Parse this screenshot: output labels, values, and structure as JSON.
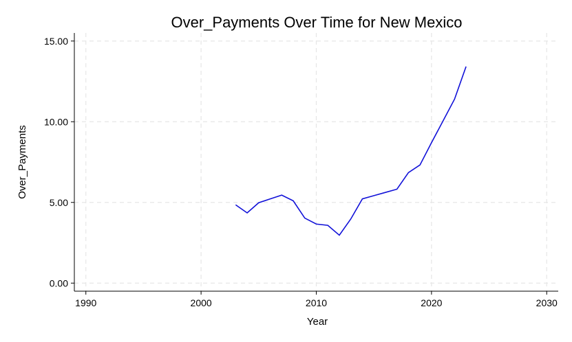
{
  "chart_data": {
    "type": "line",
    "title": "Over_Payments Over Time for New Mexico",
    "xlabel": "Year",
    "ylabel": "Over_Payments",
    "xlim": [
      1989,
      2031
    ],
    "ylim": [
      -0.5,
      15.5
    ],
    "x_ticks": [
      1990,
      2000,
      2010,
      2020,
      2030
    ],
    "x_tick_labels": [
      "1990",
      "2000",
      "2010",
      "2020",
      "2030"
    ],
    "y_ticks": [
      0,
      5,
      10,
      15
    ],
    "y_tick_labels": [
      "0.00",
      "5.00",
      "10.00",
      "15.00"
    ],
    "grid": true,
    "series": [
      {
        "color": "#1010d8",
        "x": [
          2003,
          2004,
          2005,
          2006,
          2007,
          2008,
          2009,
          2010,
          2011,
          2012,
          2013,
          2014,
          2015,
          2016,
          2017,
          2018,
          2019,
          2020,
          2021,
          2022,
          2023
        ],
        "y": [
          4.85,
          4.35,
          4.98,
          5.22,
          5.45,
          5.1,
          4.03,
          3.66,
          3.58,
          2.97,
          3.98,
          5.22,
          5.42,
          5.62,
          5.82,
          6.85,
          7.32,
          8.7,
          10.05,
          11.4,
          13.42
        ]
      }
    ]
  }
}
